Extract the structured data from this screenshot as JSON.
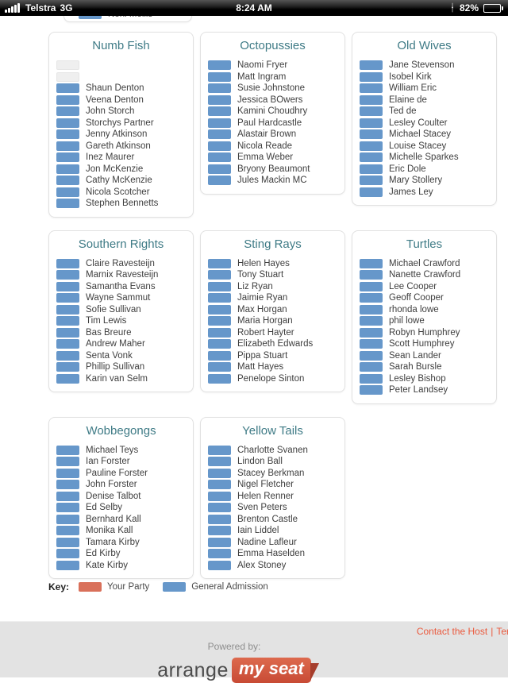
{
  "status_bar": {
    "carrier": "Telstra",
    "network": "3G",
    "time": "8:24 AM",
    "battery_percent": "82%",
    "battery_level": 82
  },
  "overflow_card": {
    "member": "Noni Mellis"
  },
  "groups": [
    {
      "title": "Numb Fish",
      "members": [
        null,
        null,
        "Shaun Denton",
        "Veena Denton",
        "John Storch",
        "Storchys Partner",
        "Jenny Atkinson",
        "Gareth Atkinson",
        "Inez Maurer",
        "Jon McKenzie",
        "Cathy McKenzie",
        "Nicola Scotcher",
        "Stephen Bennetts"
      ]
    },
    {
      "title": "Octopussies",
      "members": [
        "Naomi Fryer",
        "Matt Ingram",
        "Susie Johnstone",
        "Jessica BOwers",
        "Kamini Choudhry",
        "Paul Hardcastle",
        "Alastair Brown",
        "Nicola Reade",
        "Emma Weber",
        "Bryony Beaumont",
        "Jules Mackin MC"
      ]
    },
    {
      "title": "Old Wives",
      "members": [
        "Jane Stevenson",
        "Isobel Kirk",
        "William Eric",
        "Elaine de",
        "Ted de",
        "Lesley Coulter",
        "Michael Stacey",
        "Louise Stacey",
        "Michelle Sparkes",
        "Eric Dole",
        "Mary Stollery",
        "James Ley"
      ]
    },
    {
      "title": "Southern Rights",
      "members": [
        "Claire Ravesteijn",
        "Marnix Ravesteijn",
        "Samantha Evans",
        "Wayne Sammut",
        "Sofie Sullivan",
        "Tim Lewis",
        "Bas Breure",
        "Andrew Maher",
        "Senta Vonk",
        "Phillip Sullivan",
        "Karin van Selm"
      ]
    },
    {
      "title": "Sting Rays",
      "members": [
        "Helen Hayes",
        "Tony Stuart",
        "Liz Ryan",
        "Jaimie Ryan",
        "Max Horgan",
        "Maria Horgan",
        "Robert Hayter",
        "Elizabeth Edwards",
        "Pippa Stuart",
        "Matt Hayes",
        "Penelope Sinton"
      ]
    },
    {
      "title": "Turtles",
      "members": [
        "Michael Crawford",
        "Nanette Crawford",
        "Lee Cooper",
        "Geoff Cooper",
        "rhonda lowe",
        "phil lowe",
        "Robyn Humphrey",
        "Scott Humphrey",
        "Sean Lander",
        "Sarah Bursle",
        "Lesley Bishop",
        "Peter Landsey"
      ]
    },
    {
      "title": "Wobbegongs",
      "members": [
        "Michael Teys",
        "Ian Forster",
        "Pauline Forster",
        "John Forster",
        "Denise Talbot",
        "Ed Selby",
        "Bernhard Kall",
        "Monika Kall",
        "Tamara Kirby",
        "Ed Kirby",
        "Kate Kirby"
      ]
    },
    {
      "title": "Yellow Tails",
      "members": [
        "Charlotte Svanen",
        "Lindon Ball",
        "Stacey Berkman",
        "Nigel Fletcher",
        "Helen Renner",
        "Sven Peters",
        "Brenton Castle",
        "Iain Liddel",
        "Nadine Lafleur",
        "Emma Haselden",
        "Alex Stoney"
      ]
    }
  ],
  "legend": {
    "label": "Key:",
    "items": [
      {
        "label": "Your Party",
        "color": "#d9705a"
      },
      {
        "label": "General Admission",
        "color": "#6697ca"
      }
    ]
  },
  "colors": {
    "group_title": "#3f7b86",
    "seat_general_admission": "#6697ca",
    "seat_empty": "#efefef",
    "footer_link": "#ea5a3e",
    "logo_red": "#cf5540"
  },
  "footer": {
    "link1": "Contact the Host",
    "separator": "|",
    "link2": "Ter",
    "powered_by": "Powered by:",
    "logo": {
      "left": "arrange",
      "right": "my seat"
    }
  }
}
